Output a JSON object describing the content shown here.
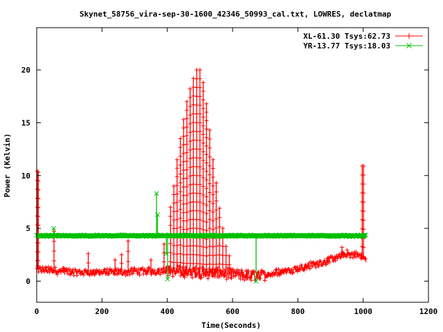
{
  "chart_data": {
    "type": "line",
    "title": "Skynet_58756_vira-sep-30-1600_42346_50993_cal.txt, LOWRES, declatmap",
    "xlabel": "Time(Seconds)",
    "ylabel": "Power (Kelvin)",
    "xlim": [
      0,
      1200
    ],
    "ylim": [
      -2,
      24
    ],
    "xticks": [
      0,
      200,
      400,
      600,
      800,
      1000,
      1200
    ],
    "yticks": [
      0,
      5,
      10,
      15,
      20
    ],
    "grid": false,
    "legend_position": "top-right",
    "series": [
      {
        "name": "XL-61.30 Tsys:62.73",
        "color": "#ff0000",
        "marker": "+",
        "baseline": [
          [
            0,
            1.1
          ],
          [
            100,
            0.9
          ],
          [
            200,
            0.8
          ],
          [
            300,
            0.9
          ],
          [
            400,
            1.0
          ],
          [
            500,
            0.8
          ],
          [
            600,
            0.7
          ],
          [
            650,
            0.5
          ],
          [
            700,
            0.6
          ],
          [
            800,
            1.2
          ],
          [
            900,
            2.0
          ],
          [
            950,
            2.6
          ],
          [
            1000,
            2.4
          ],
          [
            1010,
            1.8
          ]
        ],
        "spikes": [
          [
            2,
            10.4
          ],
          [
            5,
            10.3
          ],
          [
            53,
            4.7
          ],
          [
            158,
            2.6
          ],
          [
            240,
            2.0
          ],
          [
            260,
            2.5
          ],
          [
            280,
            3.8
          ],
          [
            350,
            2.0
          ],
          [
            390,
            3.5
          ],
          [
            410,
            7.0
          ],
          [
            420,
            9.0
          ],
          [
            430,
            11.5
          ],
          [
            440,
            13.5
          ],
          [
            450,
            15.3
          ],
          [
            460,
            17.0
          ],
          [
            470,
            18.2
          ],
          [
            480,
            19.2
          ],
          [
            490,
            20.0
          ],
          [
            500,
            20.0
          ],
          [
            510,
            18.8
          ],
          [
            520,
            16.8
          ],
          [
            530,
            14.3
          ],
          [
            540,
            11.5
          ],
          [
            550,
            9.3
          ],
          [
            560,
            6.9
          ],
          [
            570,
            5.0
          ],
          [
            580,
            3.3
          ],
          [
            590,
            2.4
          ],
          [
            675,
            0.4
          ],
          [
            935,
            3.2
          ],
          [
            997,
            10.9
          ],
          [
            1001,
            10.9
          ]
        ]
      },
      {
        "name": "YR-13.77 Tsys:18.03",
        "color": "#00c000",
        "marker": "x",
        "baseline_value": 4.3,
        "x_range": [
          0,
          1010
        ],
        "spikes": [
          [
            52,
            5.0
          ],
          [
            367,
            8.3
          ],
          [
            370,
            6.3
          ],
          [
            397,
            2.6
          ],
          [
            401,
            0.2
          ],
          [
            672,
            0.0
          ]
        ]
      }
    ]
  }
}
